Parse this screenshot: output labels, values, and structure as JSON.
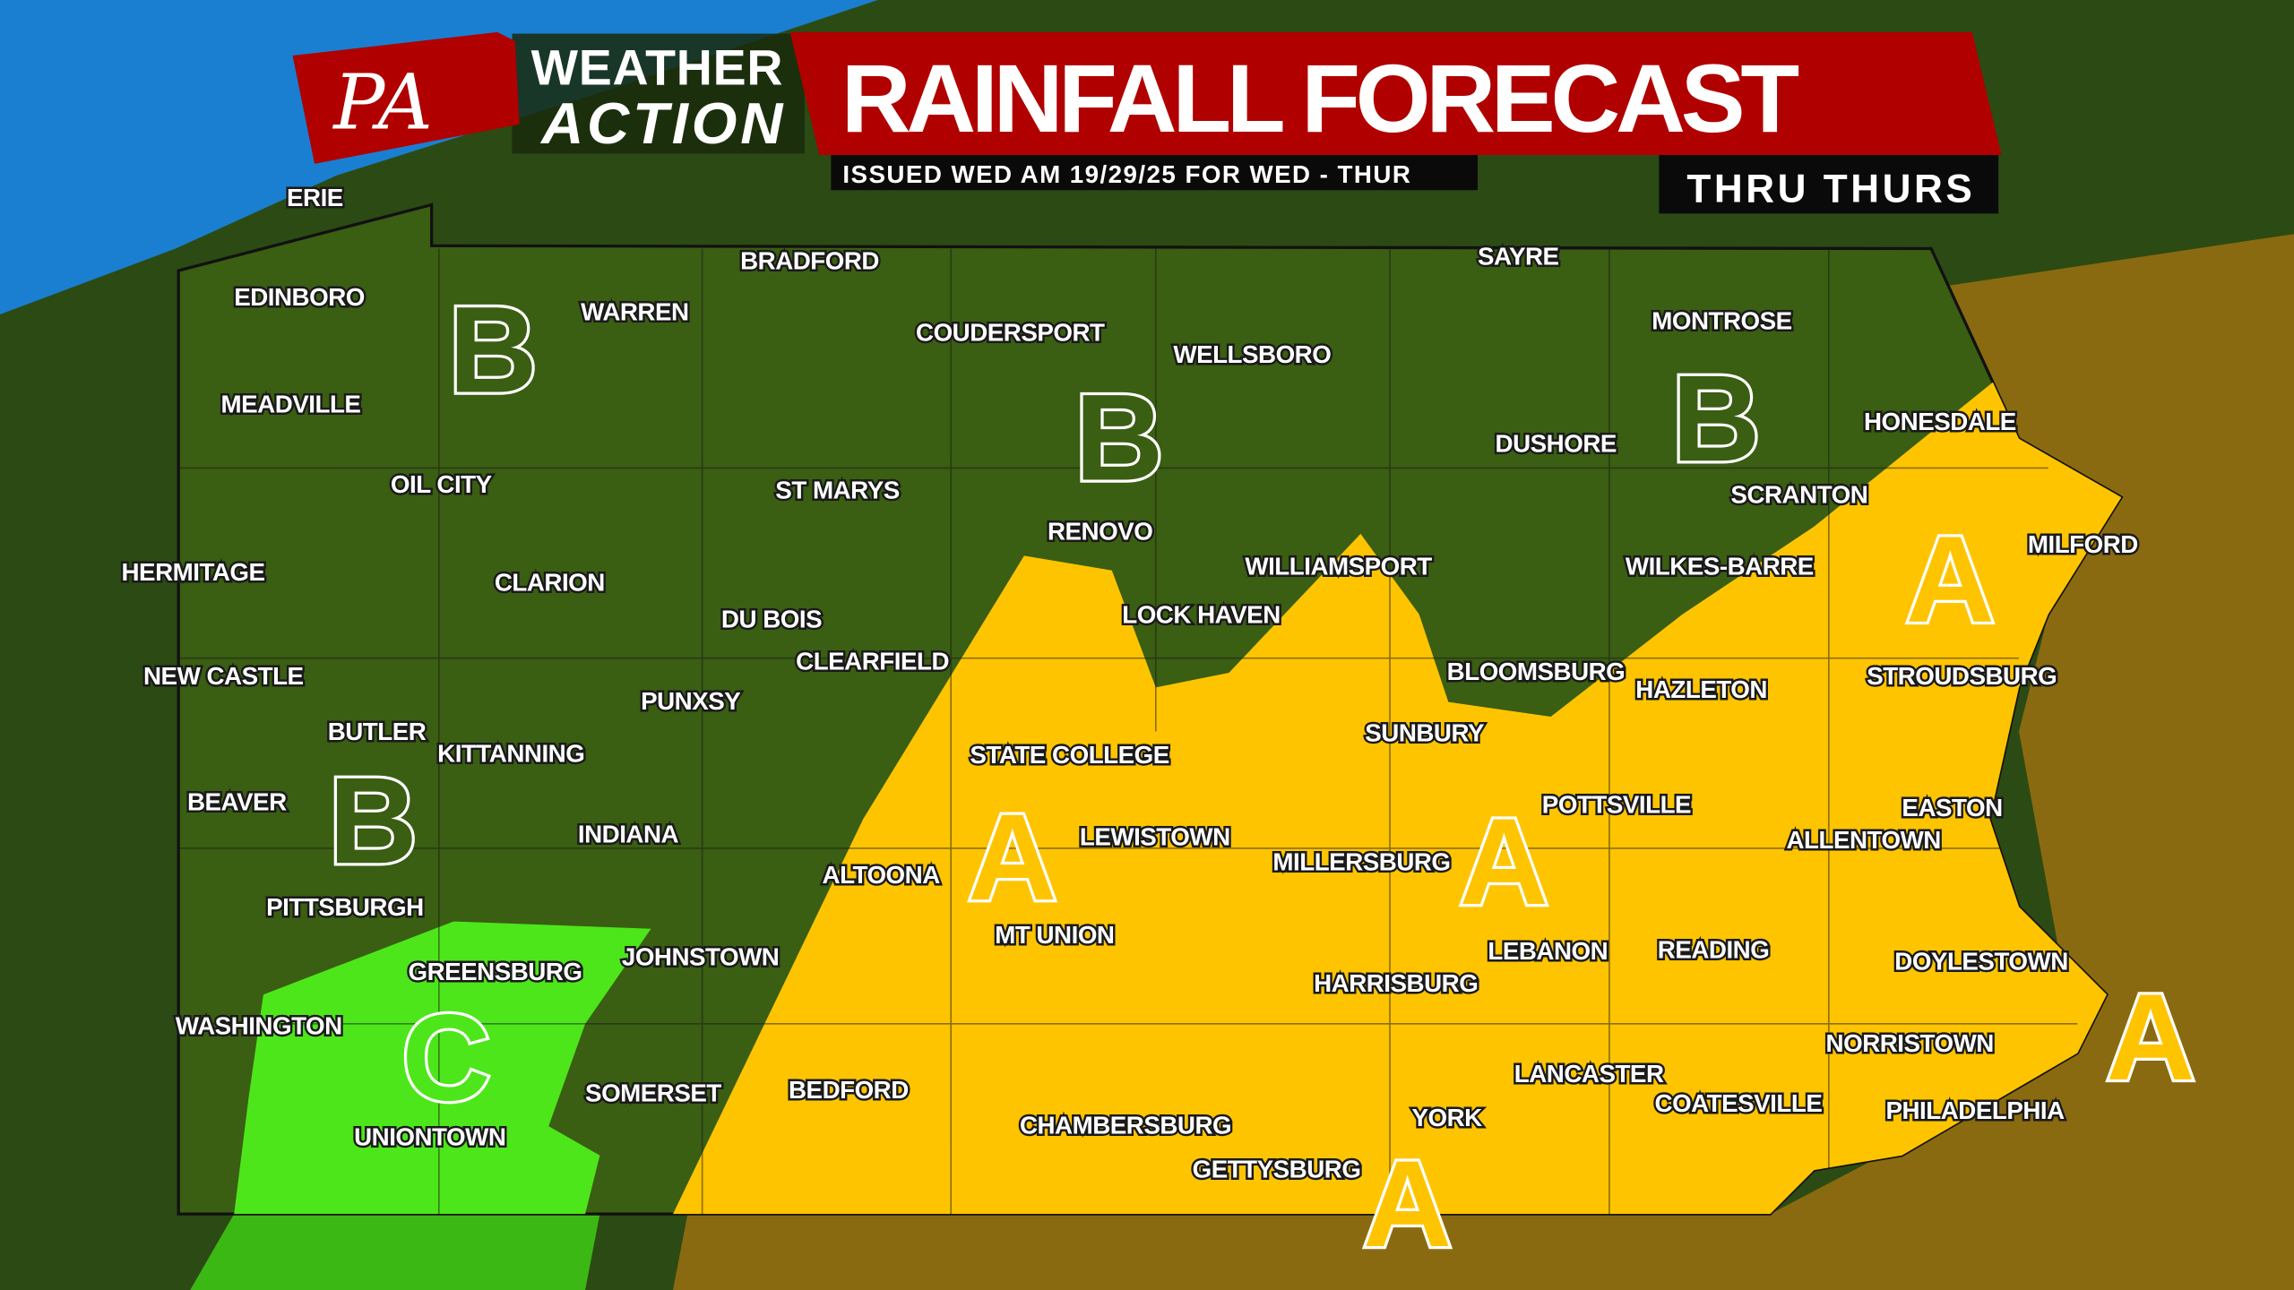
{
  "header": {
    "logo_text": "PA",
    "brand_line1": "WEATHER",
    "brand_line2": "ACTION",
    "title": "RAINFALL FORECAST",
    "issued": "ISSUED WED AM 19/29/25 FOR WED - THUR",
    "period": "THRU THURS"
  },
  "colors": {
    "zone_A": "#ffc400",
    "zone_B": "#3a5e12",
    "zone_C": "#4de61a",
    "lake": "#1a7fd0",
    "banner_red": "#b00000"
  },
  "zones": [
    "A",
    "B",
    "C"
  ],
  "cities": [
    "ERIE",
    "EDINBORO",
    "MEADVILLE",
    "WARREN",
    "BRADFORD",
    "COUDERSPORT",
    "WELLSBORO",
    "SAYRE",
    "MONTROSE",
    "HONESDALE",
    "DUSHORE",
    "SCRANTON",
    "MILFORD",
    "OIL CITY",
    "ST MARYS",
    "RENOVO",
    "WILLIAMSPORT",
    "WILKES-BARRE",
    "HERMITAGE",
    "CLARION",
    "DU BOIS",
    "LOCK HAVEN",
    "CLEARFIELD",
    "BLOOMSBURG",
    "HAZLETON",
    "STROUDSBURG",
    "NEW CASTLE",
    "PUNXSY",
    "BUTLER",
    "KITTANNING",
    "STATE COLLEGE",
    "SUNBURY",
    "BEAVER",
    "POTTSVILLE",
    "EASTON",
    "INDIANA",
    "LEWISTOWN",
    "ALLENTOWN",
    "MILLERSBURG",
    "ALTOONA",
    "PITTSBURGH",
    "MT UNION",
    "GREENSBURG",
    "JOHNSTOWN",
    "LEBANON",
    "READING",
    "DOYLESTOWN",
    "HARRISBURG",
    "WASHINGTON",
    "NORRISTOWN",
    "LANCASTER",
    "SOMERSET",
    "BEDFORD",
    "COATESVILLE",
    "YORK",
    "PHILADELPHIA",
    "CHAMBERSBURG",
    "UNIONTOWN",
    "GETTYSBURG"
  ]
}
